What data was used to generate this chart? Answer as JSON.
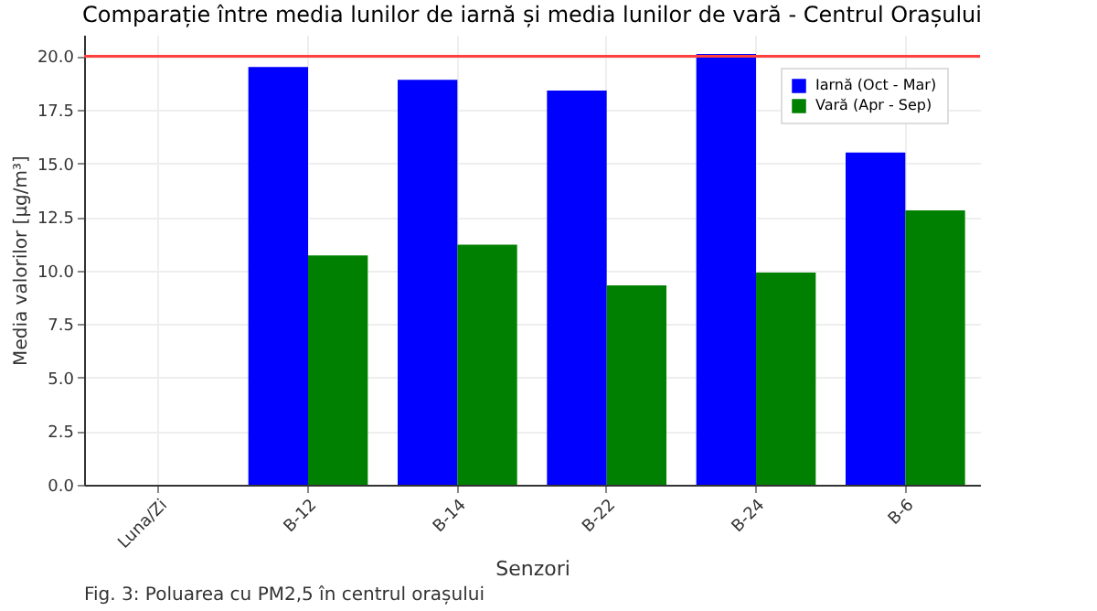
{
  "chart_data": {
    "type": "bar",
    "title": "Comparație între media lunilor de iarnă și media lunilor de vară - Centrul Orașului",
    "xlabel": "Senzori",
    "ylabel": "Media valorilor [µg/m³]",
    "categories": [
      "Luna/Zi",
      "B-12",
      "B-14",
      "B-22",
      "B-24",
      "B-6"
    ],
    "series": [
      {
        "name": "Iarnă (Oct - Mar)",
        "color": "#0000ff",
        "values": [
          null,
          19.5,
          18.9,
          18.4,
          20.1,
          15.5
        ]
      },
      {
        "name": "Vară (Apr - Sep)",
        "color": "#008000",
        "values": [
          null,
          10.7,
          11.2,
          9.3,
          9.9,
          12.8
        ]
      }
    ],
    "ylim": [
      0,
      21
    ],
    "yticks": [
      {
        "value": 0,
        "label": "0.0"
      },
      2.5,
      {
        "value": 5,
        "label": "5.0"
      },
      7.5,
      {
        "value": 10,
        "label": "10.0"
      },
      12.5,
      {
        "value": 15,
        "label": "15.0"
      },
      17.5,
      {
        "value": 20,
        "label": "20.0"
      }
    ],
    "ref_lines": [
      {
        "axis": "y",
        "value": 20,
        "color": "#ff4040"
      }
    ],
    "grid": true,
    "legend": "top right",
    "annotations": [
      "Fig. 3:  Poluarea cu PM2,5 în centrul orașului"
    ]
  }
}
